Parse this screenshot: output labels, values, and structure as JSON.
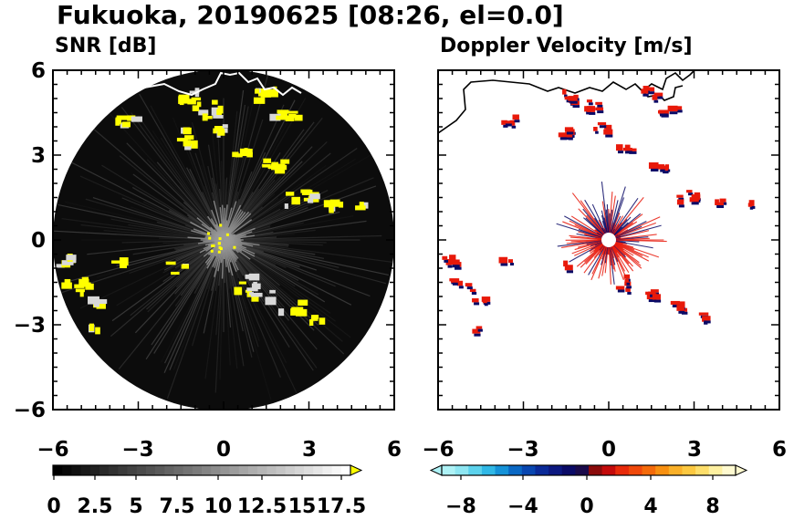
{
  "figure": {
    "title": "Fukuoka, 20190625 [08:26, el=0.0]"
  },
  "chart_data": [
    {
      "type": "heatmap",
      "title": "SNR [dB]",
      "xlim": [
        -6,
        6
      ],
      "ylim": [
        -6,
        6
      ],
      "x_ticks": [
        "−6",
        "−3",
        "0",
        "3",
        "6"
      ],
      "y_ticks": [
        "6",
        "3",
        "0",
        "−3",
        "−6"
      ],
      "colorbar": {
        "range": [
          0,
          20
        ],
        "tick_labels": [
          "0",
          "2.5",
          "5",
          "7.5",
          "10",
          "12.5",
          "15",
          "17.5"
        ],
        "ramp_from": "#000000",
        "ramp_to": "#ffffff",
        "extend": "max",
        "extend_color": "#ffff00"
      },
      "colors": {
        "background": "#0c0c0c",
        "echo": "#ffff00"
      },
      "grid": false
    },
    {
      "type": "heatmap",
      "title": "Doppler Velocity [m/s]",
      "xlim": [
        -6,
        6
      ],
      "ylim": [
        -6,
        6
      ],
      "x_ticks": [
        "−6",
        "−3",
        "0",
        "3",
        "6"
      ],
      "colorbar": {
        "range": [
          -10,
          10
        ],
        "tick_labels": [
          "−8",
          "−4",
          "0",
          "4",
          "8"
        ],
        "colors": [
          "#aef2f6",
          "#8ee6f2",
          "#5cd2ec",
          "#30b8e6",
          "#1592d8",
          "#0a68c4",
          "#0846b0",
          "#0a2a98",
          "#0c1880",
          "#0a0a66",
          "#1a0a4a",
          "#8a0a0a",
          "#c40a0a",
          "#e82a0a",
          "#f0480a",
          "#f46a0a",
          "#f89010",
          "#fab028",
          "#fcc840",
          "#fdde6a",
          "#fef0a0",
          "#fffad0"
        ],
        "extend": "both"
      },
      "colors": {
        "approaching": "#0a0a66",
        "receding": "#e8190a"
      },
      "grid": false
    }
  ]
}
